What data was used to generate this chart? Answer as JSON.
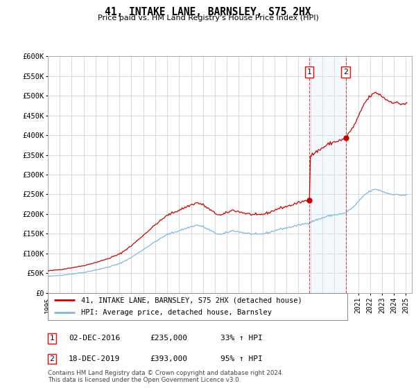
{
  "title": "41, INTAKE LANE, BARNSLEY, S75 2HX",
  "subtitle": "Price paid vs. HM Land Registry's House Price Index (HPI)",
  "ylabel_ticks": [
    "£0",
    "£50K",
    "£100K",
    "£150K",
    "£200K",
    "£250K",
    "£300K",
    "£350K",
    "£400K",
    "£450K",
    "£500K",
    "£550K",
    "£600K"
  ],
  "ytick_values": [
    0,
    50000,
    100000,
    150000,
    200000,
    250000,
    300000,
    350000,
    400000,
    450000,
    500000,
    550000,
    600000
  ],
  "hpi_color": "#7cb9e0",
  "property_color": "#cc0000",
  "vline1_x": 2016.917,
  "vline2_x": 2019.958,
  "sale1_price": 235000,
  "sale2_price": 393000,
  "shade_color": "#d6e9f8",
  "legend_label_red": "41, INTAKE LANE, BARNSLEY, S75 2HX (detached house)",
  "legend_label_blue": "HPI: Average price, detached house, Barnsley",
  "annotation1_label": "1",
  "annotation1_date": "02-DEC-2016",
  "annotation1_price": "£235,000",
  "annotation1_pct": "33% ↑ HPI",
  "annotation2_label": "2",
  "annotation2_date": "18-DEC-2019",
  "annotation2_price": "£393,000",
  "annotation2_pct": "95% ↑ HPI",
  "footnote": "Contains HM Land Registry data © Crown copyright and database right 2024.\nThis data is licensed under the Open Government Licence v3.0.",
  "xmin": 1995,
  "xmax": 2025.5,
  "ymin": 0,
  "ymax": 600000,
  "background_color": "#ffffff",
  "grid_color": "#cccccc"
}
